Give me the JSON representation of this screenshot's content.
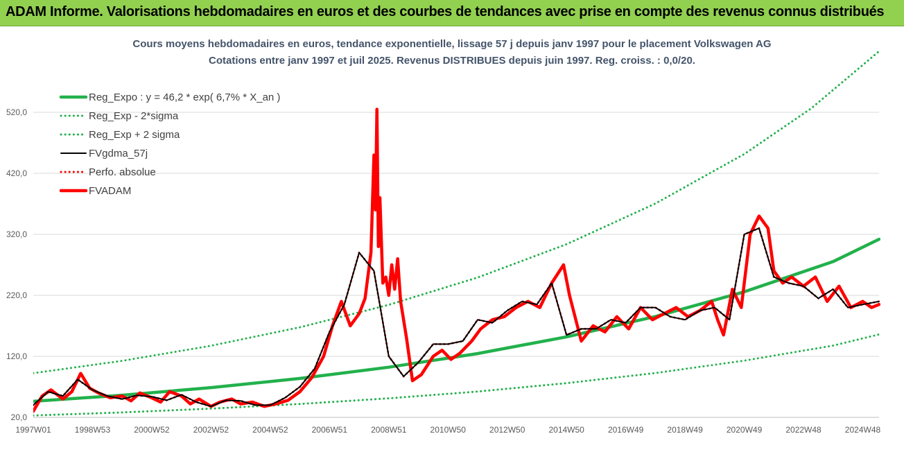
{
  "banner": {
    "title": "ADAM Informe. Valorisations hebdomadaires en euros et des courbes de tendances avec prise en compte des revenus connus distribués"
  },
  "colors": {
    "banner_bg": "#92d050",
    "reg_expo": "#22b14c",
    "bands": "#22b14c",
    "fvgdma": "#000000",
    "perfo": "#ff0000",
    "fvadam": "#ff0000",
    "subtitle": "#44546a"
  },
  "chart_data": {
    "type": "line",
    "title": "Cours moyens hebdomadaires en euros, tendance exponentielle, lissage 57 j depuis janv 1997 pour le placement Volkswagen AG",
    "subtitle": "Cotations entre janv 1997 et juil 2025. Revenus DISTRIBUES depuis juin 1997. Reg. croiss. : 0,0/20.",
    "xlabel": "",
    "ylabel": "",
    "x_range": [
      1997.0,
      2025.55
    ],
    "ylim": [
      20,
      620
    ],
    "yticks": [
      20,
      120,
      220,
      320,
      420,
      520
    ],
    "ytick_labels": [
      "20,0",
      "120,0",
      "220,0",
      "320,0",
      "420,0",
      "520,0"
    ],
    "xticks": [
      {
        "label": "1997W01",
        "x": 1997.0
      },
      {
        "label": "1998W53",
        "x": 1999.0
      },
      {
        "label": "2000W52",
        "x": 2001.0
      },
      {
        "label": "2002W52",
        "x": 2003.0
      },
      {
        "label": "2004W52",
        "x": 2005.0
      },
      {
        "label": "2006W51",
        "x": 2007.0
      },
      {
        "label": "2008W51",
        "x": 2009.0
      },
      {
        "label": "2010W50",
        "x": 2011.0
      },
      {
        "label": "2012W50",
        "x": 2013.0
      },
      {
        "label": "2014W50",
        "x": 2015.0
      },
      {
        "label": "2016W49",
        "x": 2017.0
      },
      {
        "label": "2018W49",
        "x": 2019.0
      },
      {
        "label": "2020W49",
        "x": 2021.0
      },
      {
        "label": "2022W48",
        "x": 2023.0
      },
      {
        "label": "2024W48",
        "x": 2025.0
      }
    ],
    "grid": true,
    "legend_position": "top-left",
    "series": [
      {
        "name": "Reg_Expo : y = 46,2 * exp( 6,7% *  X_an )",
        "style": "solid-thick",
        "color": "#22b14c",
        "x": [
          1997.0,
          2000.0,
          2003.0,
          2006.0,
          2009.0,
          2012.0,
          2015.0,
          2018.0,
          2021.0,
          2024.0,
          2025.55
        ],
        "values": [
          46.2,
          56.3,
          68.7,
          83.8,
          102.2,
          124.6,
          151.9,
          185.2,
          225.8,
          275.3,
          311.9
        ]
      },
      {
        "name": "Reg_Exp - 2*sigma",
        "style": "dotted",
        "color": "#22b14c",
        "x": [
          1997.0,
          2000.0,
          2003.0,
          2006.0,
          2009.0,
          2012.0,
          2015.0,
          2018.0,
          2021.0,
          2024.0,
          2025.55
        ],
        "values": [
          23.1,
          28.1,
          34.3,
          41.9,
          51.1,
          62.3,
          76.0,
          92.6,
          112.9,
          137.6,
          155.9
        ]
      },
      {
        "name": "Reg_Exp + 2 sigma",
        "style": "dotted",
        "color": "#22b14c",
        "x": [
          1997.0,
          2000.0,
          2003.0,
          2006.0,
          2009.0,
          2012.0,
          2015.0,
          2018.0,
          2021.0,
          2023.25,
          2025.55
        ],
        "values": [
          92.4,
          112.6,
          137.4,
          167.6,
          204.4,
          249.2,
          303.8,
          370.4,
          451.6,
          526.0,
          620.0
        ]
      },
      {
        "name": "FVgdma_57j",
        "style": "solid",
        "color": "#000000",
        "x": [
          1997.0,
          1997.5,
          1998.0,
          1998.5,
          1999.0,
          1999.5,
          2000.0,
          2000.5,
          2001.0,
          2001.5,
          2002.0,
          2002.5,
          2003.0,
          2003.5,
          2004.0,
          2004.5,
          2005.0,
          2005.5,
          2006.0,
          2006.5,
          2007.0,
          2007.5,
          2008.0,
          2008.5,
          2009.0,
          2009.5,
          2010.0,
          2010.5,
          2011.0,
          2011.5,
          2012.0,
          2012.5,
          2013.0,
          2013.5,
          2014.0,
          2014.5,
          2015.0,
          2015.5,
          2016.0,
          2016.5,
          2017.0,
          2017.5,
          2018.0,
          2018.5,
          2019.0,
          2019.5,
          2020.0,
          2020.5,
          2021.0,
          2021.5,
          2022.0,
          2022.5,
          2023.0,
          2023.5,
          2024.0,
          2024.5,
          2025.0,
          2025.55
        ],
        "values": [
          40,
          62,
          55,
          82,
          65,
          55,
          50,
          56,
          54,
          48,
          57,
          45,
          38,
          48,
          47,
          40,
          40,
          52,
          70,
          100,
          160,
          205,
          290,
          260,
          120,
          87,
          110,
          140,
          140,
          145,
          180,
          175,
          195,
          210,
          205,
          240,
          155,
          165,
          165,
          180,
          175,
          200,
          200,
          185,
          180,
          195,
          200,
          180,
          320,
          330,
          250,
          240,
          235,
          215,
          230,
          200,
          205,
          210
        ]
      },
      {
        "name": "Perfo. absolue",
        "style": "dotted",
        "color": "#ff0000",
        "x": [
          1997.0,
          1997.5,
          1998.0,
          1998.5,
          1999.0,
          1999.5,
          2000.0,
          2000.5,
          2001.0,
          2001.5,
          2002.0,
          2002.5,
          2003.0,
          2003.5,
          2004.0,
          2004.5,
          2005.0,
          2005.5,
          2006.0,
          2006.5,
          2007.0,
          2007.5,
          2008.0,
          2008.5,
          2009.0,
          2009.5,
          2010.0,
          2010.5,
          2011.0,
          2011.5,
          2012.0,
          2012.5,
          2013.0,
          2013.5,
          2014.0,
          2014.5,
          2015.0,
          2015.5,
          2016.0,
          2016.5,
          2017.0,
          2017.5,
          2018.0,
          2018.5,
          2019.0,
          2019.5,
          2020.0,
          2020.5,
          2021.0,
          2021.5,
          2022.0,
          2022.5,
          2023.0,
          2023.5,
          2024.0,
          2024.5,
          2025.0,
          2025.55
        ],
        "values": [
          40,
          62,
          55,
          82,
          65,
          55,
          50,
          56,
          54,
          48,
          57,
          45,
          38,
          48,
          47,
          40,
          40,
          52,
          70,
          100,
          160,
          205,
          290,
          260,
          120,
          87,
          110,
          140,
          140,
          145,
          180,
          175,
          195,
          210,
          205,
          240,
          155,
          165,
          165,
          180,
          175,
          200,
          200,
          185,
          180,
          195,
          200,
          180,
          320,
          330,
          250,
          240,
          235,
          215,
          230,
          200,
          205,
          210
        ]
      },
      {
        "name": "FVADAM",
        "style": "solid-thick",
        "color": "#ff0000",
        "x": [
          1997.0,
          1997.3,
          1997.6,
          1998.0,
          1998.3,
          1998.6,
          1998.9,
          1999.2,
          1999.6,
          2000.0,
          2000.3,
          2000.6,
          2001.0,
          2001.3,
          2001.6,
          2002.0,
          2002.3,
          2002.6,
          2003.0,
          2003.3,
          2003.7,
          2004.0,
          2004.4,
          2004.8,
          2005.2,
          2005.6,
          2006.0,
          2006.4,
          2006.8,
          2007.1,
          2007.4,
          2007.7,
          2008.0,
          2008.2,
          2008.4,
          2008.5,
          2008.55,
          2008.6,
          2008.65,
          2008.7,
          2008.8,
          2008.9,
          2009.0,
          2009.1,
          2009.2,
          2009.3,
          2009.4,
          2009.6,
          2009.8,
          2010.1,
          2010.5,
          2010.8,
          2011.1,
          2011.4,
          2011.8,
          2012.1,
          2012.5,
          2012.9,
          2013.3,
          2013.7,
          2014.1,
          2014.5,
          2014.9,
          2015.1,
          2015.5,
          2015.9,
          2016.3,
          2016.7,
          2017.1,
          2017.5,
          2017.9,
          2018.3,
          2018.7,
          2019.1,
          2019.5,
          2019.9,
          2020.1,
          2020.3,
          2020.6,
          2020.9,
          2021.2,
          2021.5,
          2021.8,
          2022.0,
          2022.3,
          2022.6,
          2023.0,
          2023.4,
          2023.8,
          2024.2,
          2024.6,
          2025.0,
          2025.3,
          2025.55
        ],
        "values": [
          30,
          55,
          65,
          50,
          62,
          92,
          68,
          60,
          52,
          55,
          47,
          60,
          52,
          45,
          62,
          55,
          42,
          50,
          38,
          45,
          50,
          42,
          45,
          38,
          42,
          48,
          62,
          85,
          120,
          170,
          210,
          170,
          190,
          215,
          290,
          450,
          360,
          525,
          300,
          380,
          240,
          250,
          220,
          270,
          230,
          280,
          210,
          150,
          80,
          90,
          120,
          130,
          115,
          125,
          145,
          165,
          180,
          185,
          200,
          210,
          200,
          240,
          270,
          220,
          145,
          170,
          160,
          185,
          165,
          200,
          180,
          190,
          200,
          185,
          195,
          210,
          180,
          155,
          230,
          200,
          320,
          350,
          330,
          260,
          240,
          250,
          235,
          250,
          210,
          235,
          200,
          210,
          200,
          205
        ]
      }
    ]
  }
}
